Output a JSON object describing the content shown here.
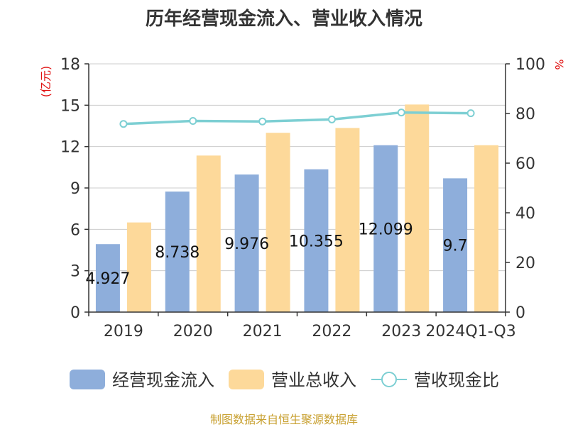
{
  "chart_data": {
    "type": "bar",
    "title": "历年经营现金流入、营业收入情况",
    "left_unit": "(亿元)",
    "right_unit": "%",
    "categories": [
      "2019",
      "2020",
      "2021",
      "2022",
      "2023",
      "2024Q1-Q3"
    ],
    "series": [
      {
        "name": "经营现金流入",
        "kind": "bar",
        "axis": "left",
        "color": "#8eaedb",
        "values": [
          4.927,
          8.738,
          9.976,
          10.355,
          12.099,
          9.7
        ]
      },
      {
        "name": "营业总收入",
        "kind": "bar",
        "axis": "left",
        "color": "#fdd99a",
        "values": [
          6.5,
          11.35,
          13.0,
          13.35,
          15.05,
          12.1
        ]
      },
      {
        "name": "营收现金比",
        "kind": "line",
        "axis": "right",
        "color": "#7dcfd3",
        "values": [
          75.8,
          77.0,
          76.8,
          77.6,
          80.4,
          80.1
        ]
      }
    ],
    "data_labels": [
      "4.927",
      "8.738",
      "9.976",
      "10.355",
      "12.099",
      "9.7"
    ],
    "left_axis": {
      "min": 0,
      "max": 18,
      "ticks": [
        0,
        3,
        6,
        9,
        12,
        15,
        18
      ]
    },
    "right_axis": {
      "min": 0,
      "max": 100,
      "ticks": [
        0,
        20,
        40,
        60,
        80,
        100
      ]
    },
    "grid": true,
    "legend_position": "bottom"
  },
  "source": "制图数据来自恒生聚源数据库"
}
